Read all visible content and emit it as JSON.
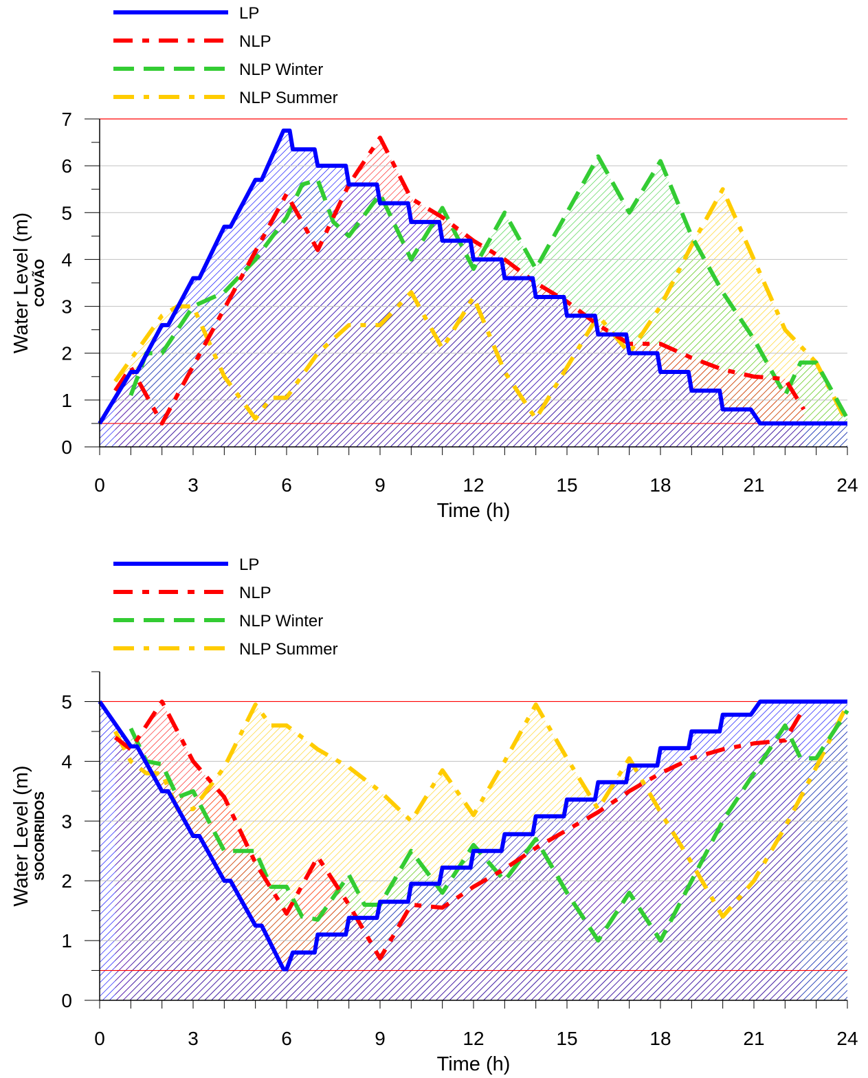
{
  "colors": {
    "lp": "#0000ff",
    "nlp": "#ff0000",
    "nlp_winter": "#33cc33",
    "nlp_summer": "#ffcc00",
    "limit_line": "#ff0000",
    "grid": "#c0c0c0"
  },
  "chart_data": [
    {
      "type": "line",
      "xlabel": "Time (h)",
      "ylabel": "Water Level (m)",
      "subtitle": "COVÃO",
      "xlim": [
        0,
        24
      ],
      "ylim": [
        0,
        7
      ],
      "xticks": [
        0,
        3,
        6,
        9,
        12,
        15,
        18,
        21,
        24
      ],
      "yticks": [
        0,
        1,
        2,
        3,
        4,
        5,
        6,
        7
      ],
      "grid": true,
      "legend_position": "top-left",
      "limits": [
        0.5,
        7
      ],
      "series": [
        {
          "name": "LP",
          "x": [
            0,
            1,
            1.2,
            2,
            2.2,
            3,
            3.2,
            4,
            4.2,
            5,
            5.2,
            5.9,
            6.1,
            6.2,
            6.9,
            7,
            7.9,
            8,
            8.9,
            9,
            9.9,
            10,
            10.9,
            11,
            11.9,
            12,
            12.9,
            13,
            13.9,
            14,
            14.9,
            15,
            15.9,
            16,
            16.9,
            17,
            17.9,
            18,
            18.9,
            19,
            19.9,
            20,
            20.9,
            21.2,
            24
          ],
          "y": [
            0.5,
            1.6,
            1.6,
            2.6,
            2.6,
            3.6,
            3.6,
            4.7,
            4.7,
            5.7,
            5.7,
            6.75,
            6.75,
            6.35,
            6.35,
            6.0,
            6.0,
            5.6,
            5.6,
            5.2,
            5.2,
            4.8,
            4.8,
            4.4,
            4.4,
            4.0,
            4.0,
            3.6,
            3.6,
            3.2,
            3.2,
            2.8,
            2.8,
            2.4,
            2.4,
            2.0,
            2.0,
            1.6,
            1.6,
            1.2,
            1.2,
            0.8,
            0.8,
            0.5,
            0.5
          ]
        },
        {
          "name": "NLP",
          "x": [
            0.5,
            1,
            2,
            6,
            7,
            8,
            9,
            10,
            11,
            12,
            13,
            14,
            15,
            16,
            17,
            18,
            19,
            20,
            21,
            22,
            22.6
          ],
          "y": [
            1.2,
            1.7,
            0.5,
            5.4,
            4.2,
            5.6,
            6.6,
            5.3,
            4.9,
            4.4,
            4.0,
            3.5,
            3.1,
            2.6,
            2.2,
            2.2,
            1.9,
            1.65,
            1.5,
            1.45,
            0.8
          ]
        },
        {
          "name": "NLP Winter",
          "x": [
            1,
            1.5,
            2,
            3,
            4,
            5,
            6,
            6.5,
            7,
            7.5,
            8,
            9,
            10,
            11,
            12,
            13,
            14,
            16,
            17,
            18,
            19,
            20,
            21,
            22,
            22.5,
            23,
            24
          ],
          "y": [
            1.1,
            2.0,
            2.0,
            3.0,
            3.3,
            4.0,
            4.9,
            5.6,
            5.7,
            4.8,
            4.5,
            5.4,
            4.0,
            5.1,
            3.8,
            5.0,
            3.8,
            6.2,
            5.0,
            6.1,
            4.5,
            3.3,
            2.3,
            1.1,
            1.8,
            1.8,
            0.6
          ]
        },
        {
          "name": "NLP Summer",
          "x": [
            0.5,
            2,
            2.5,
            3,
            4,
            5,
            5.5,
            6,
            7,
            8,
            9,
            10,
            11,
            12,
            13,
            14,
            16,
            17,
            18,
            19,
            20,
            21,
            22,
            23,
            24
          ],
          "y": [
            1.4,
            2.8,
            3.0,
            3.0,
            1.5,
            0.6,
            1.05,
            1.05,
            2.0,
            2.6,
            2.6,
            3.3,
            2.1,
            3.2,
            1.6,
            0.6,
            2.8,
            2.0,
            3.0,
            4.3,
            5.5,
            4.0,
            2.5,
            1.8,
            0.5
          ]
        }
      ]
    },
    {
      "type": "line",
      "xlabel": "Time (h)",
      "ylabel": "Water Level (m)",
      "subtitle": "SOCORRIDOS",
      "xlim": [
        0,
        24
      ],
      "ylim": [
        0,
        5.5
      ],
      "xticks": [
        0,
        3,
        6,
        9,
        12,
        15,
        18,
        21,
        24
      ],
      "yticks": [
        0,
        1,
        2,
        3,
        4,
        5
      ],
      "grid": true,
      "legend_position": "top-left",
      "limits": [
        0.5,
        5
      ],
      "series": [
        {
          "name": "LP",
          "x": [
            0,
            1,
            1.2,
            2,
            2.2,
            3,
            3.2,
            4,
            4.2,
            5,
            5.2,
            5.9,
            6,
            6.2,
            6.9,
            7,
            7.9,
            8,
            8.9,
            9,
            9.9,
            10,
            10.9,
            11,
            11.9,
            12,
            12.9,
            13,
            13.9,
            14,
            14.9,
            15,
            15.9,
            16,
            16.9,
            17,
            17.9,
            18,
            18.9,
            19,
            19.9,
            20,
            20.9,
            21.2,
            24
          ],
          "y": [
            5.0,
            4.25,
            4.25,
            3.5,
            3.5,
            2.75,
            2.75,
            2.0,
            2.0,
            1.25,
            1.25,
            0.52,
            0.52,
            0.8,
            0.8,
            1.1,
            1.1,
            1.38,
            1.38,
            1.65,
            1.65,
            1.95,
            1.95,
            2.22,
            2.22,
            2.5,
            2.5,
            2.78,
            2.78,
            3.08,
            3.08,
            3.36,
            3.36,
            3.65,
            3.65,
            3.93,
            3.93,
            4.22,
            4.22,
            4.5,
            4.5,
            4.78,
            4.78,
            5.0,
            5.0
          ]
        },
        {
          "name": "NLP",
          "x": [
            0.5,
            1,
            2,
            3,
            4,
            5,
            6,
            7,
            8,
            9,
            10,
            11,
            12,
            13,
            14,
            15,
            16,
            17,
            18,
            19,
            20,
            21,
            22,
            22.5
          ],
          "y": [
            4.4,
            4.2,
            5.0,
            4.0,
            3.4,
            2.3,
            1.45,
            2.4,
            1.6,
            0.7,
            1.6,
            1.55,
            1.9,
            2.2,
            2.55,
            2.85,
            3.15,
            3.5,
            3.8,
            4.05,
            4.2,
            4.3,
            4.35,
            4.8
          ]
        },
        {
          "name": "NLP Winter",
          "x": [
            1,
            1.5,
            2,
            2.5,
            3,
            4,
            5,
            5.5,
            6,
            6.5,
            7,
            8,
            8.5,
            9,
            10,
            11,
            12,
            13,
            14,
            15,
            16,
            17,
            18,
            19,
            20,
            21,
            22,
            22.5,
            23,
            24
          ],
          "y": [
            4.55,
            4.0,
            3.95,
            3.4,
            3.5,
            2.5,
            2.5,
            1.9,
            1.9,
            1.4,
            1.35,
            2.1,
            1.6,
            1.6,
            2.5,
            1.8,
            2.6,
            2.0,
            2.7,
            1.8,
            1.0,
            1.8,
            1.0,
            2.0,
            3.0,
            3.8,
            4.6,
            4.05,
            4.05,
            4.85
          ]
        },
        {
          "name": "NLP Summer",
          "x": [
            0.5,
            1,
            1.5,
            2,
            2.5,
            3,
            4,
            5,
            5.5,
            6,
            7,
            8,
            9,
            10,
            11,
            12,
            13,
            14,
            15,
            16,
            17,
            18,
            19,
            20,
            21,
            22,
            23,
            24
          ],
          "y": [
            4.5,
            4.0,
            3.8,
            3.8,
            3.2,
            3.2,
            3.9,
            4.95,
            4.6,
            4.6,
            4.2,
            3.9,
            3.5,
            3.0,
            3.85,
            3.1,
            4.0,
            4.95,
            4.05,
            3.2,
            4.05,
            3.15,
            2.3,
            1.4,
            2.0,
            2.9,
            3.9,
            4.95
          ]
        }
      ]
    }
  ]
}
